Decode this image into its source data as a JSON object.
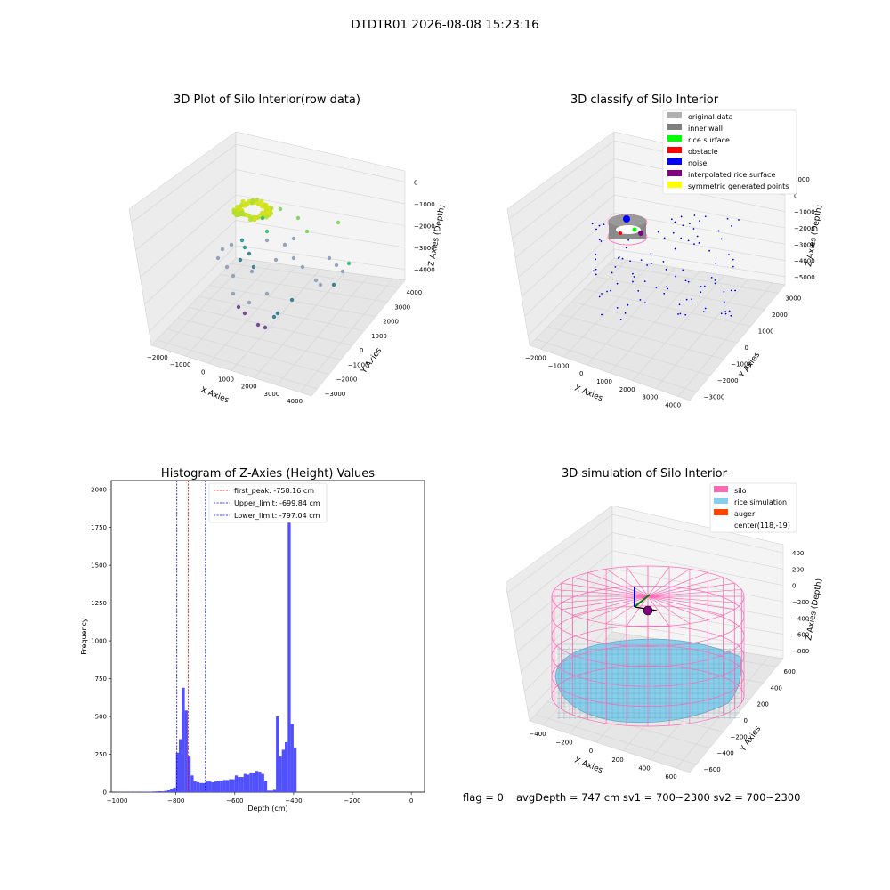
{
  "suptitle": "DTDTR01 2026-08-08 15:23:16",
  "footer": {
    "flag": "flag = 0",
    "stats": "avgDepth = 747 cm  sv1 = 700~2300  sv2 = 700~2300"
  },
  "panels": {
    "raw": {
      "title": "3D Plot of Silo Interior(row data)",
      "xlabel": "X Axies",
      "ylabel": "Y Axies",
      "zlabel": "Z Axies (Depth)",
      "xticks": [
        "−2000",
        "−1000",
        "0",
        "1000",
        "2000",
        "3000",
        "4000"
      ],
      "yticks": [
        "−3000",
        "−2000",
        "−1000",
        "0",
        "1000",
        "2000",
        "3000",
        "4000"
      ],
      "zticks": [
        "0",
        "−1000",
        "−2000",
        "−3000",
        "−4000"
      ]
    },
    "classify": {
      "title": "3D classify of Silo Interior",
      "xlabel": "X Axies",
      "ylabel": "Y Axies",
      "zlabel": "Z Axies (Depth)",
      "xticks": [
        "−2000",
        "−1000",
        "0",
        "1000",
        "2000",
        "3000",
        "4000"
      ],
      "yticks": [
        "−3000",
        "−2000",
        "−1000",
        "0",
        "1000",
        "2000",
        "3000"
      ],
      "zticks": [
        "1000",
        "0",
        "−1000",
        "−2000",
        "−3000",
        "−4000",
        "−5000"
      ],
      "legend": [
        {
          "label": "original data",
          "color": "#b0b0b0"
        },
        {
          "label": "inner wall",
          "color": "#808080"
        },
        {
          "label": "rice surface",
          "color": "#00ff00"
        },
        {
          "label": "obstacle",
          "color": "#ff0000"
        },
        {
          "label": "noise",
          "color": "#0000ff"
        },
        {
          "label": "interpolated rice surface",
          "color": "#800080"
        },
        {
          "label": "symmetric generated points",
          "color": "#ffff00"
        }
      ]
    },
    "histogram": {
      "title": "Histogram of Z-Axies (Height) Values",
      "xlabel": "Depth (cm)",
      "ylabel": "Frequency",
      "xticks": [
        "−1000",
        "−800",
        "−600",
        "−400",
        "−200",
        "0"
      ],
      "yticks": [
        "0",
        "250",
        "500",
        "750",
        "1000",
        "1250",
        "1500",
        "1750",
        "2000"
      ],
      "legend": [
        {
          "label": "first_peak: -758.16 cm",
          "color": "#ff0000"
        },
        {
          "label": "Upper_limit: -699.84 cm",
          "color": "#0000ff"
        },
        {
          "label": "Lower_limit: -797.04 cm",
          "color": "#0000ff"
        }
      ]
    },
    "simulation": {
      "title": "3D simulation of Silo Interior",
      "xlabel": "X Axies",
      "ylabel": "Y Axies",
      "zlabel": "Z Axies (Depth)",
      "xticks": [
        "−400",
        "−200",
        "0",
        "200",
        "400",
        "600"
      ],
      "yticks": [
        "−600",
        "−400",
        "−200",
        "0",
        "200",
        "400",
        "600"
      ],
      "zticks": [
        "400",
        "200",
        "0",
        "−200",
        "−400",
        "−600",
        "−800"
      ],
      "legend": [
        {
          "label": "silo",
          "color": "#ff69b4"
        },
        {
          "label": "rice simulation",
          "color": "#87ceeb"
        },
        {
          "label": "auger",
          "color": "#ff4500"
        },
        {
          "label": "center(118,-19)",
          "color": ""
        }
      ]
    }
  },
  "chart_data": [
    {
      "type": "bar",
      "title": "Histogram of Z-Axies (Height) Values",
      "xlabel": "Depth (cm)",
      "ylabel": "Frequency",
      "xlim": [
        -1020,
        45
      ],
      "ylim": [
        0,
        2060
      ],
      "bin_width": 10,
      "bar_color": "#5050ff",
      "bins": [
        {
          "x0": -1000,
          "v": 2
        },
        {
          "x0": -990,
          "v": 1
        },
        {
          "x0": -980,
          "v": 2
        },
        {
          "x0": -970,
          "v": 1
        },
        {
          "x0": -960,
          "v": 2
        },
        {
          "x0": -950,
          "v": 1
        },
        {
          "x0": -940,
          "v": 2
        },
        {
          "x0": -930,
          "v": 1
        },
        {
          "x0": -920,
          "v": 2
        },
        {
          "x0": -910,
          "v": 2
        },
        {
          "x0": -900,
          "v": 3
        },
        {
          "x0": -890,
          "v": 3
        },
        {
          "x0": -880,
          "v": 4
        },
        {
          "x0": -870,
          "v": 5
        },
        {
          "x0": -860,
          "v": 6
        },
        {
          "x0": -850,
          "v": 5
        },
        {
          "x0": -840,
          "v": 8
        },
        {
          "x0": -830,
          "v": 12
        },
        {
          "x0": -820,
          "v": 20
        },
        {
          "x0": -810,
          "v": 30
        },
        {
          "x0": -800,
          "v": 260
        },
        {
          "x0": -790,
          "v": 350
        },
        {
          "x0": -780,
          "v": 690
        },
        {
          "x0": -770,
          "v": 540
        },
        {
          "x0": -760,
          "v": 235
        },
        {
          "x0": -750,
          "v": 110
        },
        {
          "x0": -740,
          "v": 70
        },
        {
          "x0": -730,
          "v": 65
        },
        {
          "x0": -720,
          "v": 60
        },
        {
          "x0": -710,
          "v": 60
        },
        {
          "x0": -700,
          "v": 70
        },
        {
          "x0": -690,
          "v": 70
        },
        {
          "x0": -680,
          "v": 65
        },
        {
          "x0": -670,
          "v": 70
        },
        {
          "x0": -660,
          "v": 75
        },
        {
          "x0": -650,
          "v": 75
        },
        {
          "x0": -640,
          "v": 80
        },
        {
          "x0": -630,
          "v": 80
        },
        {
          "x0": -620,
          "v": 85
        },
        {
          "x0": -610,
          "v": 85
        },
        {
          "x0": -600,
          "v": 110
        },
        {
          "x0": -590,
          "v": 100
        },
        {
          "x0": -580,
          "v": 100
        },
        {
          "x0": -570,
          "v": 120
        },
        {
          "x0": -560,
          "v": 115
        },
        {
          "x0": -550,
          "v": 130
        },
        {
          "x0": -540,
          "v": 130
        },
        {
          "x0": -530,
          "v": 140
        },
        {
          "x0": -520,
          "v": 135
        },
        {
          "x0": -510,
          "v": 120
        },
        {
          "x0": -500,
          "v": 75
        },
        {
          "x0": -490,
          "v": 10
        },
        {
          "x0": -480,
          "v": 10
        },
        {
          "x0": -470,
          "v": 15
        },
        {
          "x0": -460,
          "v": 500
        },
        {
          "x0": -450,
          "v": 235
        },
        {
          "x0": -440,
          "v": 280
        },
        {
          "x0": -430,
          "v": 330
        },
        {
          "x0": -420,
          "v": 1960
        },
        {
          "x0": -410,
          "v": 450
        },
        {
          "x0": -400,
          "v": 295
        }
      ],
      "vlines": [
        {
          "label": "first_peak: -758.16 cm",
          "x": -758.16,
          "color": "#ff0000"
        },
        {
          "label": "Upper_limit: -699.84 cm",
          "x": -699.84,
          "color": "#0000ff"
        },
        {
          "label": "Lower_limit: -797.04 cm",
          "x": -797.04,
          "color": "#0000ff"
        }
      ],
      "legend": "upper-left"
    }
  ]
}
